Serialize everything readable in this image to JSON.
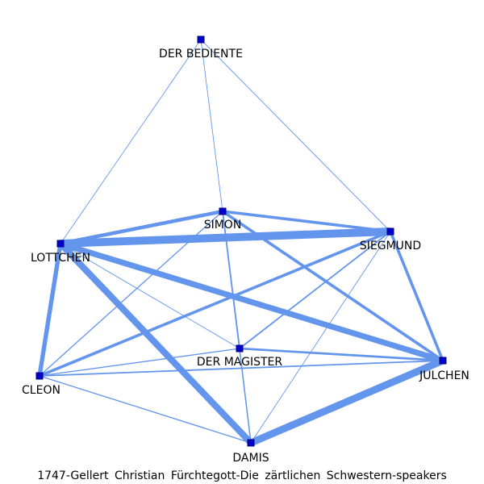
{
  "caption": "1747-Gellert_Christian_Fürchtegott-Die_zärtlichen_Schwestern-speakers",
  "colors": {
    "edge": "#6495ED",
    "node": "#0000CD",
    "node_border": "#000080"
  },
  "nodes": [
    {
      "id": "bediente",
      "label": "DER BEDIENTE"
    },
    {
      "id": "simon",
      "label": "SIMON"
    },
    {
      "id": "lottchen",
      "label": "LOTTCHEN"
    },
    {
      "id": "siegmund",
      "label": "SIEGMUND"
    },
    {
      "id": "magister",
      "label": "DER MAGISTER"
    },
    {
      "id": "julchen",
      "label": "JULCHEN"
    },
    {
      "id": "cleon",
      "label": "CLEON"
    },
    {
      "id": "damis",
      "label": "DAMIS"
    }
  ],
  "edges": [
    {
      "source": "bediente",
      "target": "lottchen",
      "weight": 1
    },
    {
      "source": "bediente",
      "target": "simon",
      "weight": 1
    },
    {
      "source": "bediente",
      "target": "siegmund",
      "weight": 1
    },
    {
      "source": "simon",
      "target": "lottchen",
      "weight": 5
    },
    {
      "source": "simon",
      "target": "siegmund",
      "weight": 4
    },
    {
      "source": "simon",
      "target": "julchen",
      "weight": 4
    },
    {
      "source": "simon",
      "target": "magister",
      "weight": 2
    },
    {
      "source": "simon",
      "target": "cleon",
      "weight": 1.5
    },
    {
      "source": "simon",
      "target": "damis",
      "weight": 1.5
    },
    {
      "source": "lottchen",
      "target": "siegmund",
      "weight": 11
    },
    {
      "source": "lottchen",
      "target": "julchen",
      "weight": 8
    },
    {
      "source": "lottchen",
      "target": "damis",
      "weight": 9
    },
    {
      "source": "lottchen",
      "target": "cleon",
      "weight": 6
    },
    {
      "source": "lottchen",
      "target": "magister",
      "weight": 1
    },
    {
      "source": "siegmund",
      "target": "julchen",
      "weight": 4
    },
    {
      "source": "siegmund",
      "target": "cleon",
      "weight": 4
    },
    {
      "source": "siegmund",
      "target": "magister",
      "weight": 2
    },
    {
      "source": "siegmund",
      "target": "damis",
      "weight": 1
    },
    {
      "source": "magister",
      "target": "julchen",
      "weight": 3
    },
    {
      "source": "magister",
      "target": "cleon",
      "weight": 1.5
    },
    {
      "source": "magister",
      "target": "damis",
      "weight": 1.5
    },
    {
      "source": "julchen",
      "target": "damis",
      "weight": 10
    },
    {
      "source": "julchen",
      "target": "cleon",
      "weight": 2
    },
    {
      "source": "cleon",
      "target": "damis",
      "weight": 1.5
    }
  ]
}
